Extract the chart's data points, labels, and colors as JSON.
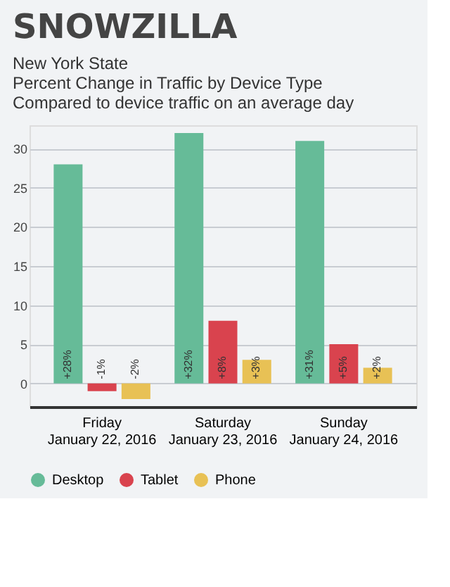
{
  "chart_data": {
    "type": "bar",
    "title": "SNOWZILLA",
    "subtitle": "New York State",
    "annotations": [
      "Percent Change in Traffic by Device Type",
      "Compared to device traffic on an average day"
    ],
    "categories": [
      "Friday\nJanuary 22, 2016",
      "Saturday\nJanuary 23, 2016",
      "Sunday\nJanuary 24, 2016"
    ],
    "series": [
      {
        "name": "Desktop",
        "color": "#66bb98",
        "values": [
          28,
          32,
          31
        ],
        "value_labels": [
          "+28%",
          "+32%",
          "+31%"
        ]
      },
      {
        "name": "Tablet",
        "color": "#d9434e",
        "values": [
          -1,
          8,
          5
        ],
        "value_labels": [
          "-1%",
          "+8%",
          "+5%"
        ]
      },
      {
        "name": "Phone",
        "color": "#e8c155",
        "values": [
          -2,
          3,
          2
        ],
        "value_labels": [
          "-2%",
          "+3%",
          "+2%"
        ]
      }
    ],
    "ylim": [
      -3,
      33
    ],
    "yticks": [
      0,
      5,
      10,
      15,
      20,
      25,
      30
    ],
    "grid": "y",
    "legend": "bottom"
  }
}
